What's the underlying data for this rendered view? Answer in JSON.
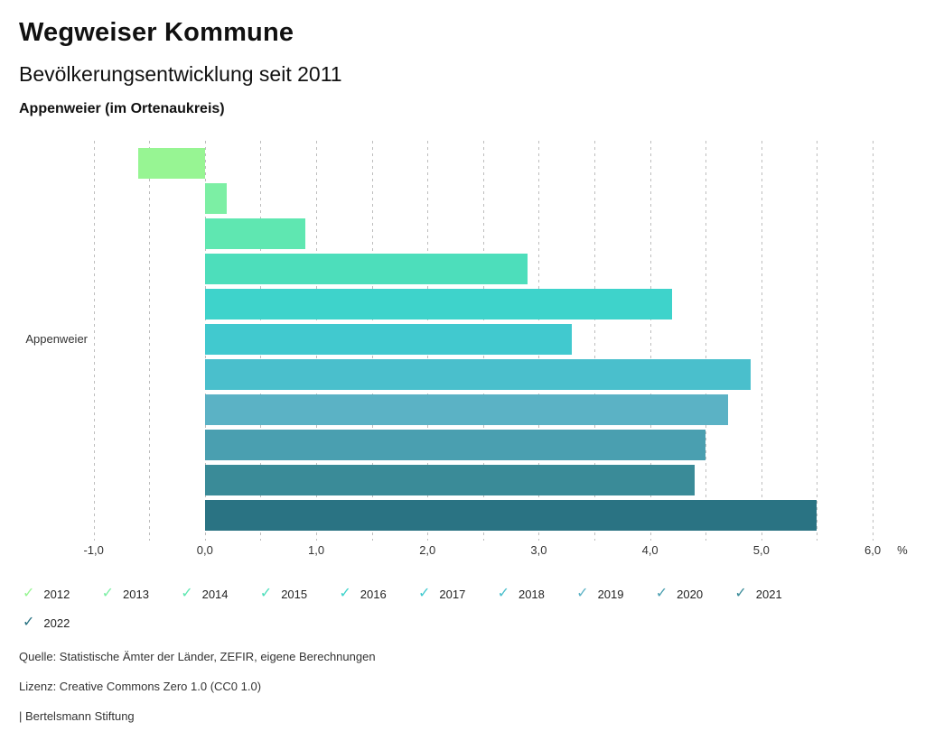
{
  "header": {
    "title": "Wegweiser Kommune",
    "subtitle": "Bevölkerungsentwicklung seit 2011",
    "region": "Appenweier (im Ortenaukreis)"
  },
  "chart_data": {
    "type": "bar",
    "orientation": "horizontal",
    "category_label": "Appenweier",
    "grid": true,
    "legend_position": "bottom",
    "series": [
      {
        "year": "2012",
        "value": -0.6,
        "color": "#97F593"
      },
      {
        "year": "2013",
        "value": 0.2,
        "color": "#7CEFA4"
      },
      {
        "year": "2014",
        "value": 0.9,
        "color": "#5FE7B1"
      },
      {
        "year": "2015",
        "value": 2.9,
        "color": "#4DDEBB"
      },
      {
        "year": "2016",
        "value": 4.2,
        "color": "#3ED3CB"
      },
      {
        "year": "2017",
        "value": 3.3,
        "color": "#41C9CF"
      },
      {
        "year": "2018",
        "value": 4.9,
        "color": "#4ABFCC"
      },
      {
        "year": "2019",
        "value": 4.7,
        "color": "#5BB2C5"
      },
      {
        "year": "2020",
        "value": 4.5,
        "color": "#4A9FB0"
      },
      {
        "year": "2021",
        "value": 4.4,
        "color": "#3A8B98"
      },
      {
        "year": "2022",
        "value": 5.5,
        "color": "#2A7383"
      }
    ],
    "xaxis": {
      "min": -1.2,
      "max": 6.3,
      "grid_min": -1.0,
      "grid_max": 6.0,
      "grid_step": 0.5,
      "ticks": [
        {
          "value": -1,
          "label": "-1,0"
        },
        {
          "value": 0,
          "label": "0,0"
        },
        {
          "value": 1,
          "label": "1,0"
        },
        {
          "value": 2,
          "label": "2,0"
        },
        {
          "value": 3,
          "label": "3,0"
        },
        {
          "value": 4,
          "label": "4,0"
        },
        {
          "value": 5,
          "label": "5,0"
        },
        {
          "value": 6,
          "label": "6,0"
        }
      ],
      "unit_label": "%",
      "unit_value": 6.22
    }
  },
  "footer": {
    "source": "Quelle: Statistische Ämter der Länder, ZEFIR, eigene Berechnungen",
    "license": "Lizenz: Creative Commons Zero 1.0 (CC0 1.0)",
    "brand": "| Bertelsmann Stiftung"
  }
}
